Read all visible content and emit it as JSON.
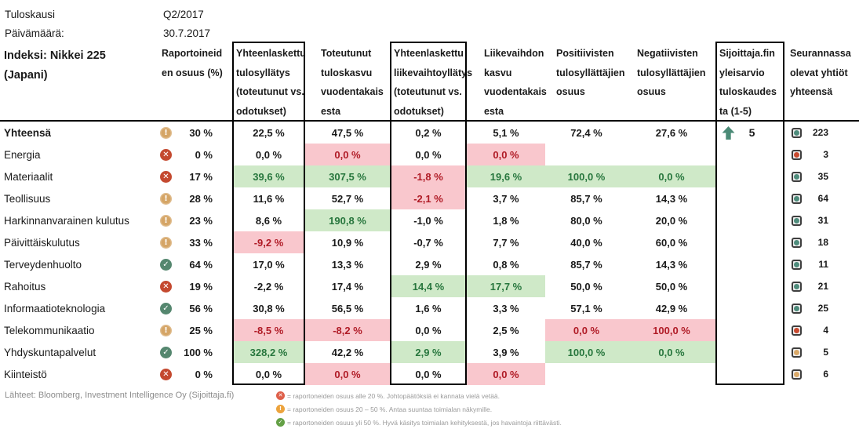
{
  "meta": {
    "period_label": "Tuloskausi",
    "period_value": "Q2/2017",
    "date_label": "Päivämäärä:",
    "date_value": "30.7.2017",
    "index_lines": [
      "Indeksi: Nikkei 225",
      "(Japani)"
    ]
  },
  "table": {
    "columns": [
      {
        "id": "sector",
        "lines": [
          "Indeksi: Nikkei 225",
          "(Japani)"
        ],
        "boxed": false
      },
      {
        "id": "reported-share",
        "lines": [
          "Raportoineid",
          "en osuus (%)"
        ],
        "boxed": false
      },
      {
        "id": "earnings-surprise",
        "lines": [
          "Yhteenlaskettu",
          "tulosyllätys",
          "(toteutunut vs.",
          "odotukset)"
        ],
        "boxed": true
      },
      {
        "id": "earnings-growth",
        "lines": [
          "Toteutunut",
          "tuloskasvu",
          "vuodentakais",
          "esta"
        ],
        "boxed": false
      },
      {
        "id": "revenue-surprise",
        "lines": [
          "Yhteenlaskettu",
          "liikevaihtoyllätys",
          "(toteutunut vs.",
          "odotukset)"
        ],
        "boxed": true
      },
      {
        "id": "revenue-growth",
        "lines": [
          "Liikevaihdon",
          "kasvu",
          "vuodentakais",
          "esta"
        ],
        "boxed": false
      },
      {
        "id": "positive-surprisers",
        "lines": [
          "Positiivisten",
          "tulosyllättäjien",
          "osuus"
        ],
        "boxed": false
      },
      {
        "id": "negative-surprisers",
        "lines": [
          "Negatiivisten",
          "tulosyllättäjien",
          "osuus"
        ],
        "boxed": false
      },
      {
        "id": "sijoittaja-rating",
        "lines": [
          "Sijoittaja.fin",
          "yleisarvio",
          "tuloskaudes",
          "ta (1-5)"
        ],
        "boxed": true
      },
      {
        "id": "companies-total",
        "lines": [
          "Seurannassa",
          "olevat yhtiöt",
          "yhteensä"
        ],
        "boxed": false
      }
    ],
    "rows": [
      {
        "label": "Yhteensä",
        "bold": true,
        "icon": "warn",
        "reported": "30 %",
        "cells": [
          {
            "t": "22,5 %",
            "s": "plain"
          },
          {
            "t": "47,5 %",
            "s": "plain"
          },
          {
            "t": "0,2 %",
            "s": "plain"
          },
          {
            "t": "5,1 %",
            "s": "plain"
          },
          {
            "t": "72,4 %",
            "s": "plain"
          },
          {
            "t": "27,6 %",
            "s": "plain"
          }
        ],
        "rating": "5",
        "rating_arrow": true,
        "count": "223",
        "count_color": "teal"
      },
      {
        "label": "Energia",
        "bold": false,
        "icon": "bad",
        "reported": "0 %",
        "cells": [
          {
            "t": "0,0 %",
            "s": "plain"
          },
          {
            "t": "0,0 %",
            "s": "bad"
          },
          {
            "t": "0,0 %",
            "s": "plain"
          },
          {
            "t": "0,0 %",
            "s": "bad"
          },
          {
            "t": "",
            "s": "empty"
          },
          {
            "t": "",
            "s": "empty"
          }
        ],
        "rating": "",
        "rating_arrow": false,
        "count": "3",
        "count_color": "red"
      },
      {
        "label": "Materiaalit",
        "bold": false,
        "icon": "bad",
        "reported": "17 %",
        "cells": [
          {
            "t": "39,6 %",
            "s": "good"
          },
          {
            "t": "307,5 %",
            "s": "good"
          },
          {
            "t": "-1,8 %",
            "s": "bad"
          },
          {
            "t": "19,6 %",
            "s": "good"
          },
          {
            "t": "100,0 %",
            "s": "good"
          },
          {
            "t": "0,0 %",
            "s": "good"
          }
        ],
        "rating": "",
        "rating_arrow": false,
        "count": "35",
        "count_color": "teal"
      },
      {
        "label": "Teollisuus",
        "bold": false,
        "icon": "warn",
        "reported": "28 %",
        "cells": [
          {
            "t": "11,6 %",
            "s": "plain"
          },
          {
            "t": "52,7 %",
            "s": "plain"
          },
          {
            "t": "-2,1 %",
            "s": "bad"
          },
          {
            "t": "3,7 %",
            "s": "plain"
          },
          {
            "t": "85,7 %",
            "s": "plain"
          },
          {
            "t": "14,3 %",
            "s": "plain"
          }
        ],
        "rating": "",
        "rating_arrow": false,
        "count": "64",
        "count_color": "teal"
      },
      {
        "label": "Harkinnanvarainen kulutus",
        "bold": false,
        "icon": "warn",
        "reported": "23 %",
        "cells": [
          {
            "t": "8,6 %",
            "s": "plain"
          },
          {
            "t": "190,8 %",
            "s": "good"
          },
          {
            "t": "-1,0 %",
            "s": "plain"
          },
          {
            "t": "1,8 %",
            "s": "plain"
          },
          {
            "t": "80,0 %",
            "s": "plain"
          },
          {
            "t": "20,0 %",
            "s": "plain"
          }
        ],
        "rating": "",
        "rating_arrow": false,
        "count": "31",
        "count_color": "teal"
      },
      {
        "label": "Päivittäiskulutus",
        "bold": false,
        "icon": "warn",
        "reported": "33 %",
        "cells": [
          {
            "t": "-9,2 %",
            "s": "bad"
          },
          {
            "t": "10,9 %",
            "s": "plain"
          },
          {
            "t": "-0,7 %",
            "s": "plain"
          },
          {
            "t": "7,7 %",
            "s": "plain"
          },
          {
            "t": "40,0 %",
            "s": "plain"
          },
          {
            "t": "60,0 %",
            "s": "plain"
          }
        ],
        "rating": "",
        "rating_arrow": false,
        "count": "18",
        "count_color": "teal"
      },
      {
        "label": "Terveydenhuolto",
        "bold": false,
        "icon": "good",
        "reported": "64 %",
        "cells": [
          {
            "t": "17,0 %",
            "s": "plain"
          },
          {
            "t": "13,3 %",
            "s": "plain"
          },
          {
            "t": "2,9 %",
            "s": "plain"
          },
          {
            "t": "0,8 %",
            "s": "plain"
          },
          {
            "t": "85,7 %",
            "s": "plain"
          },
          {
            "t": "14,3 %",
            "s": "plain"
          }
        ],
        "rating": "",
        "rating_arrow": false,
        "count": "11",
        "count_color": "teal"
      },
      {
        "label": "Rahoitus",
        "bold": false,
        "icon": "bad",
        "reported": "19 %",
        "cells": [
          {
            "t": "-2,2 %",
            "s": "plain"
          },
          {
            "t": "17,4 %",
            "s": "plain"
          },
          {
            "t": "14,4 %",
            "s": "good"
          },
          {
            "t": "17,7 %",
            "s": "good"
          },
          {
            "t": "50,0 %",
            "s": "plain"
          },
          {
            "t": "50,0 %",
            "s": "plain"
          }
        ],
        "rating": "",
        "rating_arrow": false,
        "count": "21",
        "count_color": "teal"
      },
      {
        "label": "Informaatioteknologia",
        "bold": false,
        "icon": "good",
        "reported": "56 %",
        "cells": [
          {
            "t": "30,8 %",
            "s": "plain"
          },
          {
            "t": "56,5 %",
            "s": "plain"
          },
          {
            "t": "1,6 %",
            "s": "plain"
          },
          {
            "t": "3,3 %",
            "s": "plain"
          },
          {
            "t": "57,1 %",
            "s": "plain"
          },
          {
            "t": "42,9 %",
            "s": "plain"
          }
        ],
        "rating": "",
        "rating_arrow": false,
        "count": "25",
        "count_color": "teal"
      },
      {
        "label": "Telekommunikaatio",
        "bold": false,
        "icon": "warn",
        "reported": "25 %",
        "cells": [
          {
            "t": "-8,5 %",
            "s": "bad"
          },
          {
            "t": "-8,2 %",
            "s": "bad"
          },
          {
            "t": "0,0 %",
            "s": "plain"
          },
          {
            "t": "2,5 %",
            "s": "plain"
          },
          {
            "t": "0,0 %",
            "s": "bad"
          },
          {
            "t": "100,0 %",
            "s": "bad"
          }
        ],
        "rating": "",
        "rating_arrow": false,
        "count": "4",
        "count_color": "red"
      },
      {
        "label": "Yhdyskuntapalvelut",
        "bold": false,
        "icon": "good",
        "reported": "100 %",
        "cells": [
          {
            "t": "328,2 %",
            "s": "good"
          },
          {
            "t": "42,2 %",
            "s": "plain"
          },
          {
            "t": "2,9 %",
            "s": "good"
          },
          {
            "t": "3,9 %",
            "s": "plain"
          },
          {
            "t": "100,0 %",
            "s": "good"
          },
          {
            "t": "0,0 %",
            "s": "good"
          }
        ],
        "rating": "",
        "rating_arrow": false,
        "count": "5",
        "count_color": "tan"
      },
      {
        "label": "Kiinteistö",
        "bold": false,
        "icon": "bad",
        "reported": "0 %",
        "cells": [
          {
            "t": "0,0 %",
            "s": "plain"
          },
          {
            "t": "0,0 %",
            "s": "bad"
          },
          {
            "t": "0,0 %",
            "s": "plain"
          },
          {
            "t": "0,0 %",
            "s": "bad"
          },
          {
            "t": "",
            "s": "empty"
          },
          {
            "t": "",
            "s": "empty"
          }
        ],
        "rating": "",
        "rating_arrow": false,
        "count": "6",
        "count_color": "tan"
      }
    ]
  },
  "footer": {
    "sources": "Lähteet: Bloomberg, Investment Intelligence Oy (Sijoittaja.fi)",
    "legend": [
      {
        "icon": "bad",
        "text": "= raportoneiden osuus alle 20 %. Johtopäätöksiä ei kannata vielä vetää."
      },
      {
        "icon": "warn",
        "text": "= raportoneiden osuus 20 – 50 %. Antaa suuntaa toimialan näkymille."
      },
      {
        "icon": "good",
        "text": "= raportoneiden osuus yli 50 %. Hyvä käsitys toimialan kehityksestä, jos havaintoja riittävästi."
      }
    ]
  },
  "colors": {
    "good_bg": "#cfe9c8",
    "good_text": "#27763d",
    "bad_bg": "#f9c7cd",
    "bad_text": "#b01b26",
    "icon_bad": "#c4492f",
    "icon_warn": "#d5a566",
    "icon_good": "#55876f",
    "legend_bad": "#de604b",
    "legend_warn": "#eca33c",
    "legend_good": "#64a046",
    "arrow_up": "#4a8a76",
    "dot_teal": "#4e8c7c",
    "dot_red": "#c94a2f",
    "dot_tan": "#daa968"
  }
}
